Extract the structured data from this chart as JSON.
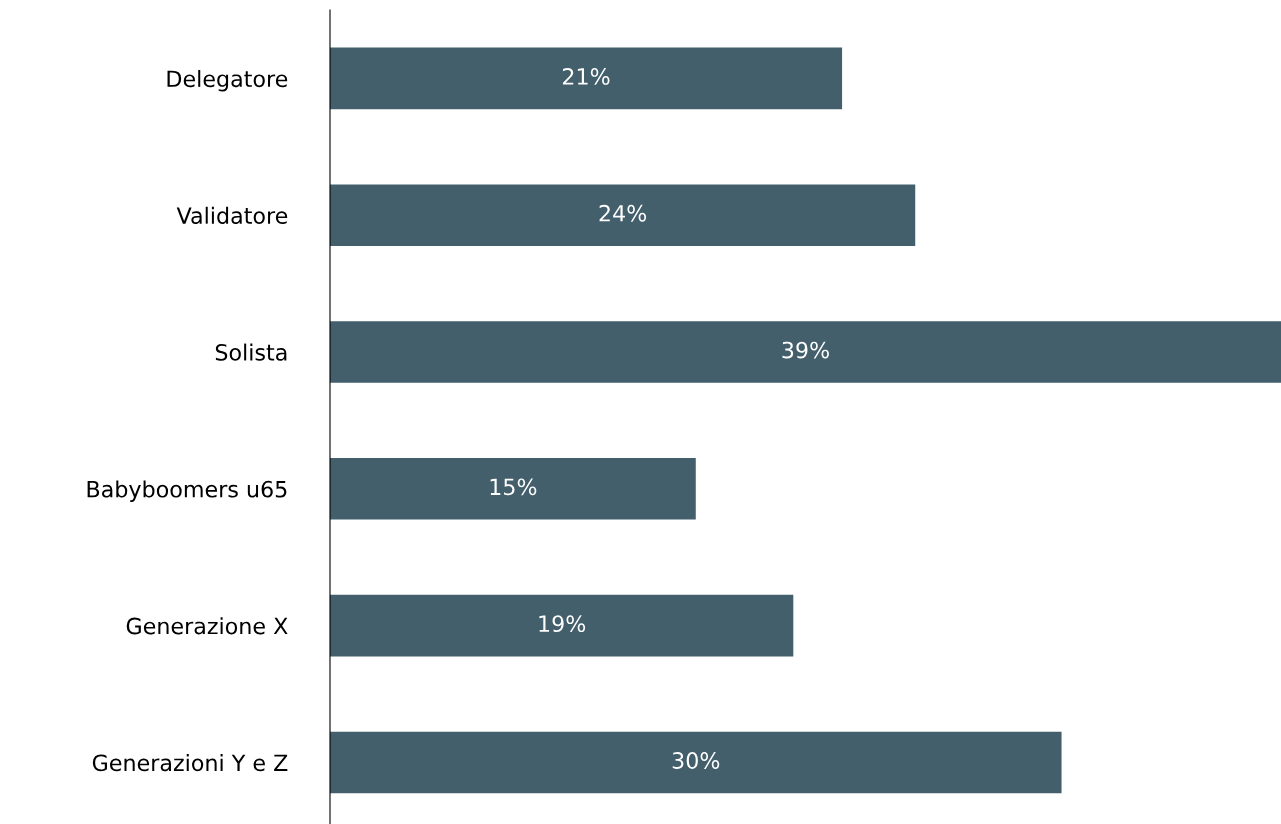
{
  "chart_data": {
    "type": "bar",
    "orientation": "horizontal",
    "categories": [
      "Delegatore",
      "Validatore",
      "Solista",
      "Babyboomers u65",
      "Generazione X",
      "Generazioni Y e Z"
    ],
    "values": [
      21,
      24,
      39,
      15,
      19,
      30
    ],
    "value_labels": [
      "21%",
      "24%",
      "39%",
      "15%",
      "19%",
      "30%"
    ],
    "color": "#435f6c",
    "xlim": [
      0,
      39
    ],
    "tick_labels": "y",
    "grid": false,
    "legend": false
  }
}
